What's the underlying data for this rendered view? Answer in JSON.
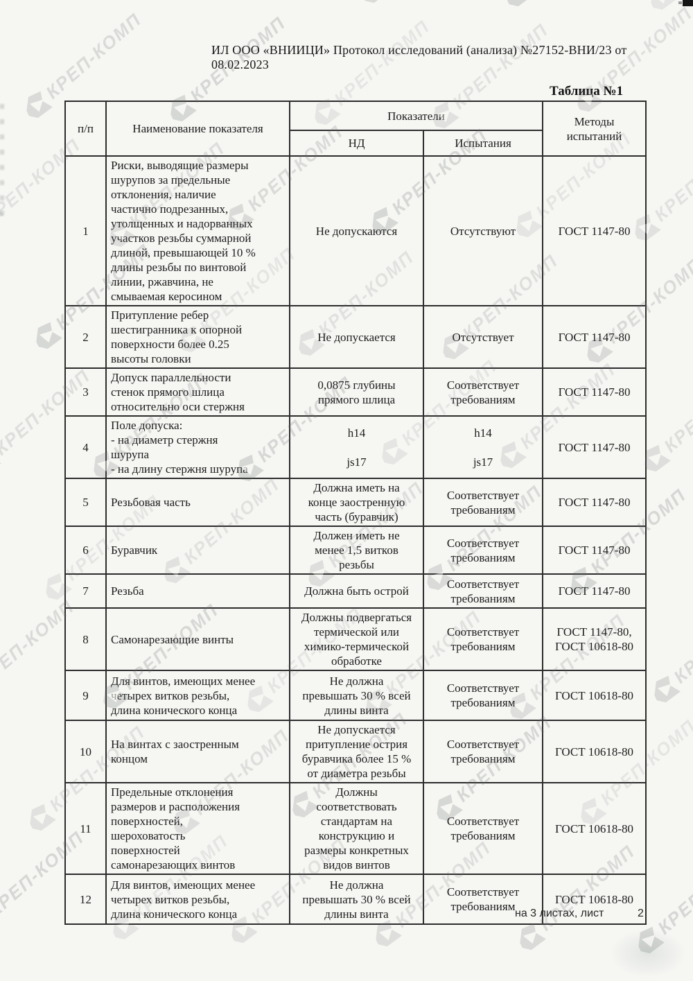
{
  "page": {
    "header_line": "ИЛ ООО «ВНИИЦИ» Протокол исследований (анализа)  №27152-ВНИ/23 от  08.02.2023",
    "table_caption": "Таблица №1",
    "footer_left": "на 3  листах, лист",
    "footer_page": "2"
  },
  "watermark": {
    "text": "КРЕП-КОМП",
    "logo": "krep-komp-logo",
    "color": "#646c68"
  },
  "table": {
    "header": {
      "col_num": "п/п",
      "col_name": "Наименование показателя",
      "col_indicators": "Показатели",
      "col_nd": "НД",
      "col_test": "Испытания",
      "col_methods": "Методы\nиспытаний"
    },
    "rows": [
      {
        "num": "1",
        "name": "Риски, выводящие размеры\nшурупов за предельные\nотклонения, наличие\nчастично подрезанных,\nутолщенных и надорванных\nучастков резьбы суммарной\nдлиной, превышающей 10 %\nдлины резьбы по винтовой\nлинии, ржавчина, не\nсмываемая керосином",
        "nd": "Не допускаются",
        "test": "Отсутствуют",
        "method": "ГОСТ 1147-80"
      },
      {
        "num": "2",
        "name": "Притупление ребер\nшестигранника к опорной\nповерхности более 0.25\nвысоты головки",
        "nd": "Не допускается",
        "test": "Отсутствует",
        "method": "ГОСТ 1147-80"
      },
      {
        "num": "3",
        "name": "Допуск параллельности\nстенок прямого шлица\nотносительно оси стержня",
        "nd": "0,0875 глубины\nпрямого шлица",
        "test": "Соответствует\nтребованиям",
        "method": "ГОСТ 1147-80"
      },
      {
        "num": "4",
        "name": "Поле допуска:\n- на диаметр стержня\nшурупа\n- на длину стержня шурупа",
        "nd": "h14\n\njs17",
        "test": "h14\n\njs17",
        "method": "ГОСТ 1147-80"
      },
      {
        "num": "5",
        "name": "Резьбовая часть",
        "nd": "Должна иметь на\nконце заостренную\nчасть (буравчик)",
        "test": "Соответствует\nтребованиям",
        "method": "ГОСТ 1147-80"
      },
      {
        "num": "6",
        "name": "Буравчик",
        "nd": "Должен иметь не\nменее 1,5 витков\nрезьбы",
        "test": "Соответствует\nтребованиям",
        "method": "ГОСТ 1147-80"
      },
      {
        "num": "7",
        "name": "Резьба",
        "nd": "Должна быть острой",
        "test": "Соответствует\nтребованиям",
        "method": "ГОСТ 1147-80"
      },
      {
        "num": "8",
        "name": "Самонарезающие винты",
        "nd": "Должны подвергаться\nтермической или\nхимико-термической\nобработке",
        "test": "Соответствует\nтребованиям",
        "method": "ГОСТ 1147-80,\nГОСТ 10618-80"
      },
      {
        "num": "9",
        "name": "Для винтов, имеющих менее\nчетырех витков резьбы,\nдлина конического конца",
        "nd": "Не должна\nпревышать 30 % всей\nдлины винта",
        "test": "Соответствует\nтребованиям",
        "method": "ГОСТ 10618-80"
      },
      {
        "num": "10",
        "name": "На винтах с заостренным\nконцом",
        "nd": "Не допускается\nпритупление острия\nбуравчика более 15 %\nот диаметра резьбы",
        "test": "Соответствует\nтребованиям",
        "method": "ГОСТ 10618-80"
      },
      {
        "num": "11",
        "name": "Предельные отклонения\nразмеров и расположения\nповерхностей,\nшероховатость\nповерхностей\nсамонарезающих винтов",
        "nd": "Должны\nсоответствовать\nстандартам на\nконструкцию и\nразмеры конкретных\nвидов винтов",
        "test": "Соответствует\nтребованиям",
        "method": "ГОСТ 10618-80"
      },
      {
        "num": "12",
        "name": "Для винтов, имеющих менее\nчетырех витков резьбы,\nдлина конического конца",
        "nd": "Не должна\nпревышать 30 % всей\nдлины винта",
        "test": "Соответствует\nтребованиям",
        "method": "ГОСТ 10618-80"
      }
    ]
  }
}
